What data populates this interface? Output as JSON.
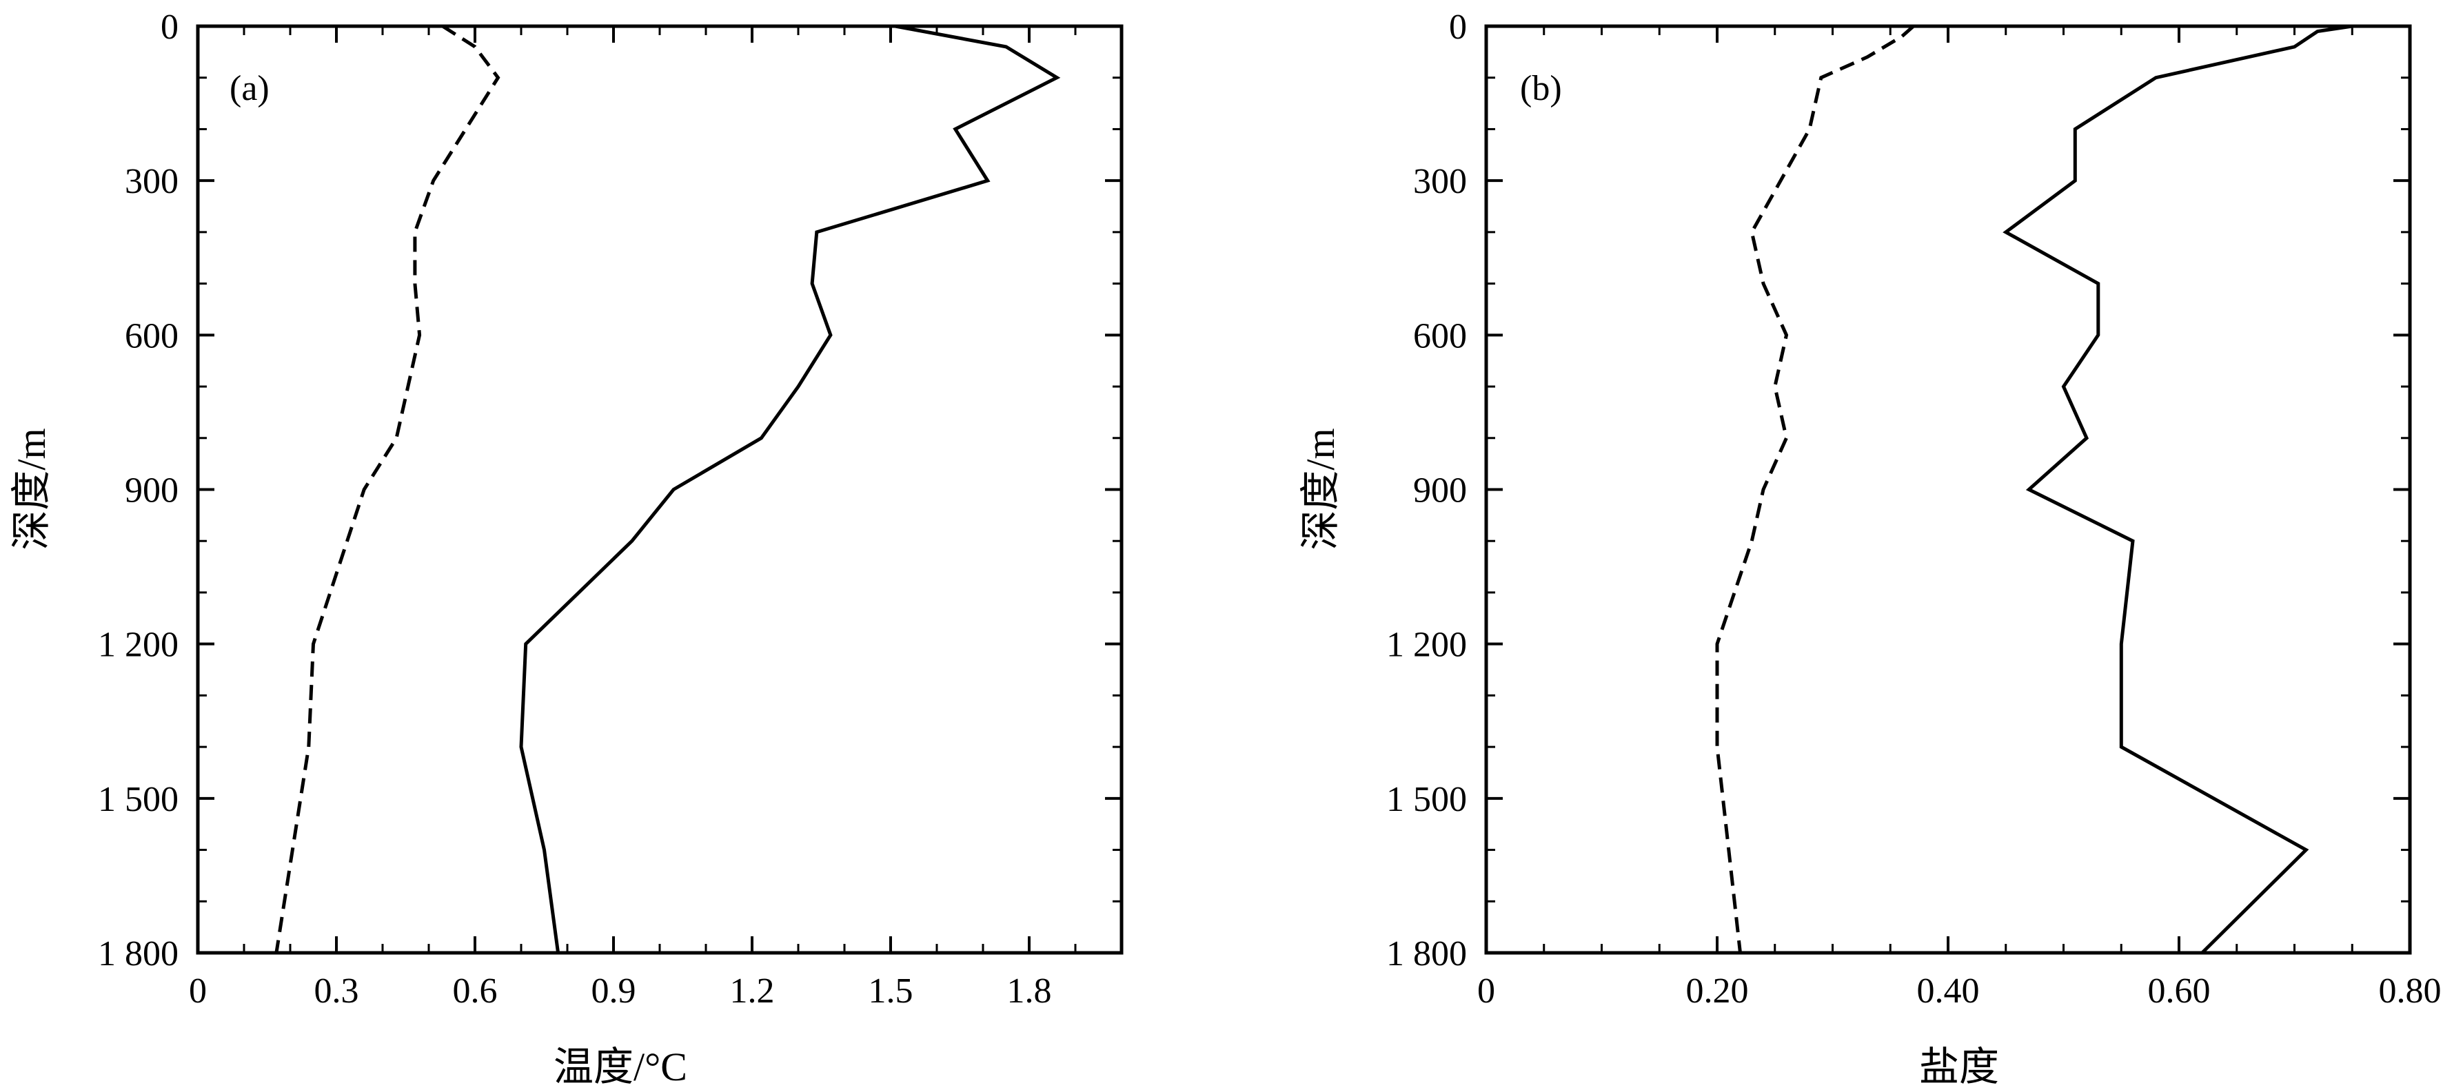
{
  "chart_data": [
    {
      "type": "line",
      "panel_label": "(a)",
      "xlabel": "温度/°C",
      "ylabel": "深度/m",
      "xlim": [
        0,
        2.0
      ],
      "ylim": [
        1800,
        0
      ],
      "y_inverted": true,
      "x_ticks": [
        0,
        0.3,
        0.6,
        0.9,
        1.2,
        1.5,
        1.8
      ],
      "x_tick_labels": [
        "0",
        "0.3",
        "0.6",
        "0.9",
        "1.2",
        "1.5",
        "1.8"
      ],
      "x_minor_step": 0.1,
      "y_ticks": [
        0,
        300,
        600,
        900,
        1200,
        1500,
        1800
      ],
      "y_tick_labels": [
        "0",
        "300",
        "600",
        "900",
        "1 200",
        "1 500",
        "1 800"
      ],
      "y_minor_step": 100,
      "grid": false,
      "series": [
        {
          "style": "dashed",
          "points": [
            [
              0.53,
              0
            ],
            [
              0.6,
              40
            ],
            [
              0.65,
              100
            ],
            [
              0.51,
              300
            ],
            [
              0.47,
              400
            ],
            [
              0.47,
              500
            ],
            [
              0.48,
              600
            ],
            [
              0.43,
              800
            ],
            [
              0.36,
              900
            ],
            [
              0.25,
              1200
            ],
            [
              0.24,
              1400
            ],
            [
              0.17,
              1800
            ]
          ]
        },
        {
          "style": "solid",
          "points": [
            [
              1.51,
              0
            ],
            [
              1.75,
              40
            ],
            [
              1.86,
              100
            ],
            [
              1.64,
              200
            ],
            [
              1.71,
              300
            ],
            [
              1.34,
              400
            ],
            [
              1.33,
              500
            ],
            [
              1.37,
              600
            ],
            [
              1.3,
              700
            ],
            [
              1.22,
              800
            ],
            [
              1.03,
              900
            ],
            [
              0.94,
              1000
            ],
            [
              0.71,
              1200
            ],
            [
              0.7,
              1400
            ],
            [
              0.75,
              1600
            ],
            [
              0.78,
              1800
            ]
          ]
        }
      ]
    },
    {
      "type": "line",
      "panel_label": "(b)",
      "xlabel": "盐度",
      "ylabel": "深度/m",
      "xlim": [
        0,
        0.8
      ],
      "ylim": [
        1800,
        0
      ],
      "y_inverted": true,
      "x_ticks": [
        0,
        0.2,
        0.4,
        0.6,
        0.8
      ],
      "x_tick_labels": [
        "0",
        "0.20",
        "0.40",
        "0.60",
        "0.80"
      ],
      "x_minor_step": 0.05,
      "y_ticks": [
        0,
        300,
        600,
        900,
        1200,
        1500,
        1800
      ],
      "y_tick_labels": [
        "0",
        "300",
        "600",
        "900",
        "1 200",
        "1 500",
        "1 800"
      ],
      "y_minor_step": 100,
      "grid": false,
      "series": [
        {
          "style": "dashed",
          "points": [
            [
              0.37,
              0
            ],
            [
              0.36,
              20
            ],
            [
              0.33,
              60
            ],
            [
              0.29,
              100
            ],
            [
              0.28,
              200
            ],
            [
              0.23,
              400
            ],
            [
              0.24,
              500
            ],
            [
              0.26,
              600
            ],
            [
              0.25,
              700
            ],
            [
              0.26,
              800
            ],
            [
              0.24,
              900
            ],
            [
              0.23,
              1000
            ],
            [
              0.2,
              1200
            ],
            [
              0.2,
              1400
            ],
            [
              0.21,
              1600
            ],
            [
              0.22,
              1800
            ]
          ]
        },
        {
          "style": "solid",
          "points": [
            [
              0.75,
              0
            ],
            [
              0.72,
              10
            ],
            [
              0.7,
              40
            ],
            [
              0.58,
              100
            ],
            [
              0.51,
              200
            ],
            [
              0.51,
              300
            ],
            [
              0.45,
              400
            ],
            [
              0.53,
              500
            ],
            [
              0.53,
              600
            ],
            [
              0.5,
              700
            ],
            [
              0.52,
              800
            ],
            [
              0.47,
              900
            ],
            [
              0.56,
              1000
            ],
            [
              0.55,
              1200
            ],
            [
              0.55,
              1400
            ],
            [
              0.71,
              1600
            ],
            [
              0.62,
              1800
            ]
          ]
        }
      ]
    }
  ]
}
